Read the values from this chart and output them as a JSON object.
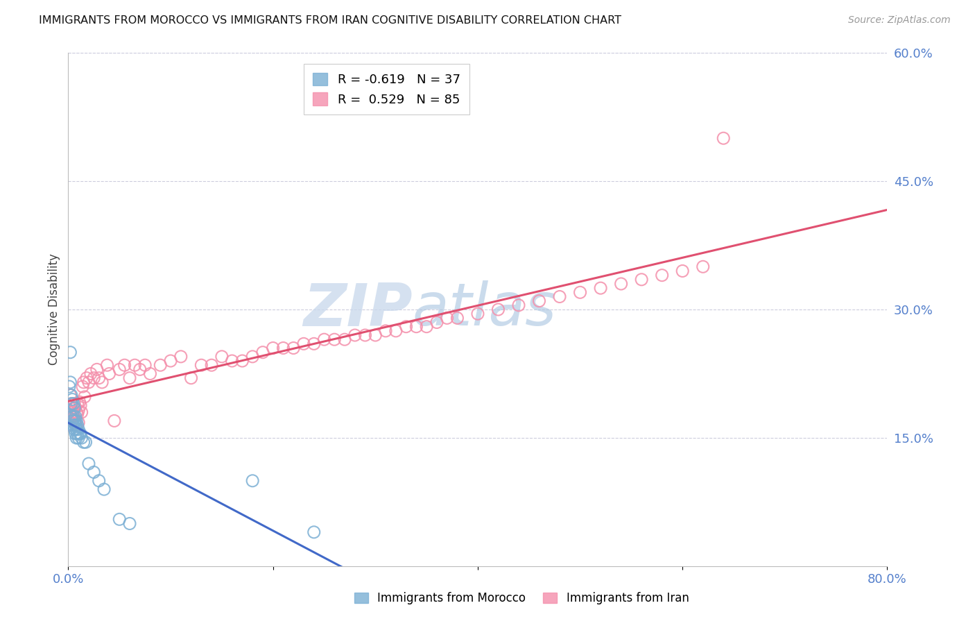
{
  "title": "IMMIGRANTS FROM MOROCCO VS IMMIGRANTS FROM IRAN COGNITIVE DISABILITY CORRELATION CHART",
  "source": "Source: ZipAtlas.com",
  "ylabel": "Cognitive Disability",
  "xlim": [
    0.0,
    0.8
  ],
  "ylim": [
    0.0,
    0.6
  ],
  "ytick_vals_right": [
    0.15,
    0.3,
    0.45,
    0.6
  ],
  "morocco_color": "#7BAFD4",
  "iran_color": "#F48FAB",
  "morocco_line_color": "#4169C8",
  "iran_line_color": "#E05070",
  "morocco_R": -0.619,
  "morocco_N": 37,
  "iran_R": 0.529,
  "iran_N": 85,
  "watermark_zip": "ZIP",
  "watermark_atlas": "atlas",
  "morocco_x": [
    0.001,
    0.002,
    0.002,
    0.003,
    0.003,
    0.003,
    0.004,
    0.004,
    0.005,
    0.005,
    0.005,
    0.006,
    0.006,
    0.006,
    0.007,
    0.007,
    0.007,
    0.008,
    0.008,
    0.008,
    0.009,
    0.009,
    0.01,
    0.01,
    0.011,
    0.012,
    0.013,
    0.015,
    0.017,
    0.02,
    0.025,
    0.03,
    0.035,
    0.05,
    0.06,
    0.18,
    0.24
  ],
  "morocco_y": [
    0.21,
    0.25,
    0.215,
    0.2,
    0.19,
    0.175,
    0.195,
    0.17,
    0.19,
    0.175,
    0.165,
    0.185,
    0.17,
    0.16,
    0.175,
    0.165,
    0.155,
    0.17,
    0.16,
    0.15,
    0.165,
    0.155,
    0.16,
    0.15,
    0.155,
    0.155,
    0.15,
    0.145,
    0.145,
    0.12,
    0.11,
    0.1,
    0.09,
    0.055,
    0.05,
    0.1,
    0.04
  ],
  "iran_x": [
    0.001,
    0.002,
    0.002,
    0.003,
    0.003,
    0.004,
    0.004,
    0.005,
    0.005,
    0.006,
    0.006,
    0.007,
    0.007,
    0.008,
    0.008,
    0.009,
    0.009,
    0.01,
    0.01,
    0.011,
    0.012,
    0.013,
    0.014,
    0.015,
    0.016,
    0.018,
    0.02,
    0.022,
    0.025,
    0.028,
    0.03,
    0.033,
    0.038,
    0.04,
    0.045,
    0.05,
    0.055,
    0.06,
    0.065,
    0.07,
    0.075,
    0.08,
    0.09,
    0.1,
    0.11,
    0.12,
    0.13,
    0.14,
    0.15,
    0.16,
    0.17,
    0.18,
    0.19,
    0.2,
    0.21,
    0.22,
    0.23,
    0.24,
    0.25,
    0.26,
    0.27,
    0.28,
    0.29,
    0.3,
    0.31,
    0.32,
    0.33,
    0.34,
    0.35,
    0.36,
    0.37,
    0.38,
    0.4,
    0.42,
    0.44,
    0.46,
    0.48,
    0.5,
    0.52,
    0.54,
    0.56,
    0.58,
    0.6,
    0.62,
    0.64
  ],
  "iran_y": [
    0.18,
    0.165,
    0.2,
    0.175,
    0.19,
    0.18,
    0.17,
    0.185,
    0.175,
    0.19,
    0.175,
    0.185,
    0.17,
    0.18,
    0.165,
    0.19,
    0.178,
    0.182,
    0.168,
    0.192,
    0.188,
    0.18,
    0.21,
    0.215,
    0.198,
    0.22,
    0.215,
    0.225,
    0.22,
    0.23,
    0.22,
    0.215,
    0.235,
    0.225,
    0.17,
    0.23,
    0.235,
    0.22,
    0.235,
    0.23,
    0.235,
    0.225,
    0.235,
    0.24,
    0.245,
    0.22,
    0.235,
    0.235,
    0.245,
    0.24,
    0.24,
    0.245,
    0.25,
    0.255,
    0.255,
    0.255,
    0.26,
    0.26,
    0.265,
    0.265,
    0.265,
    0.27,
    0.27,
    0.27,
    0.275,
    0.275,
    0.28,
    0.28,
    0.28,
    0.285,
    0.29,
    0.29,
    0.295,
    0.3,
    0.305,
    0.31,
    0.315,
    0.32,
    0.325,
    0.33,
    0.335,
    0.34,
    0.345,
    0.35,
    0.5
  ]
}
